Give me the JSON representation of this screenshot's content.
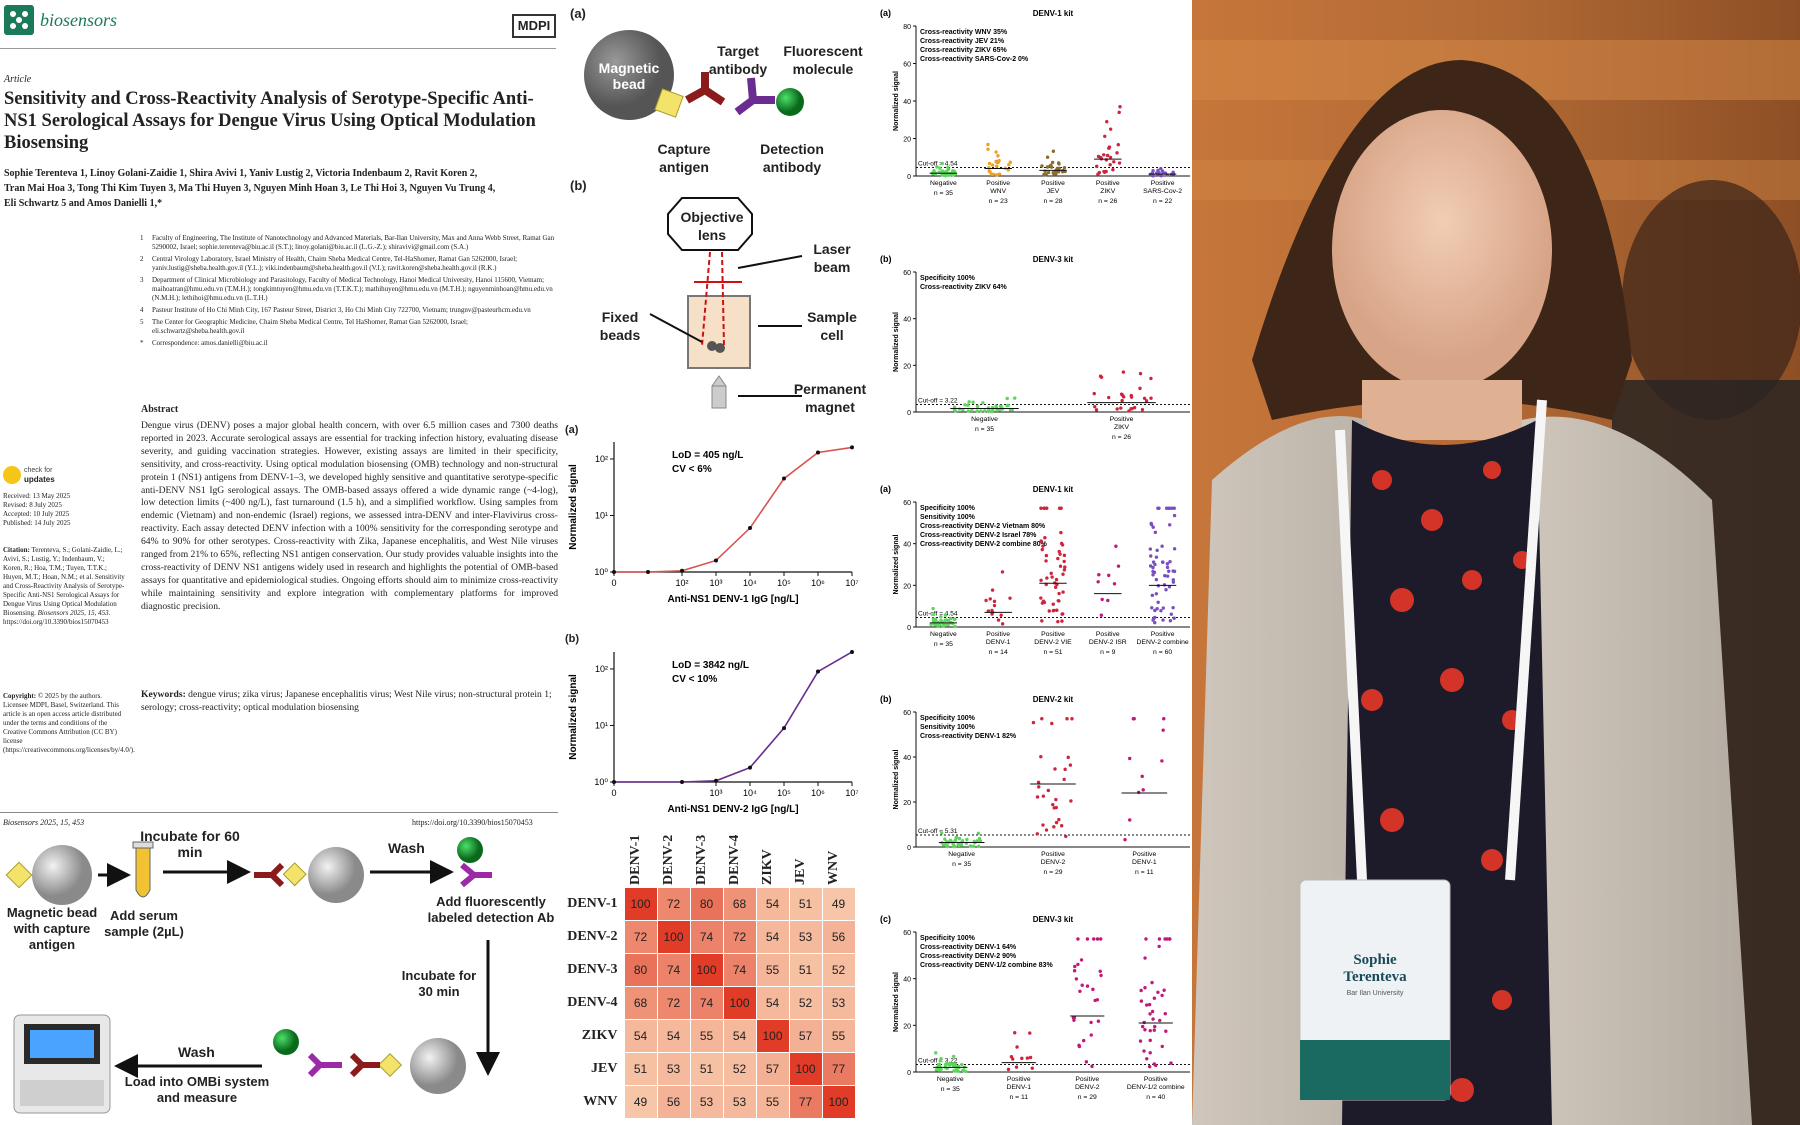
{
  "journal": {
    "name": "biosensors",
    "publisher": "MDPI"
  },
  "article": {
    "type": "Article",
    "title": "Sensitivity and Cross-Reactivity Analysis of Serotype-Specific Anti-NS1 Serological Assays for Dengue Virus Using Optical Modulation Biosensing",
    "authors_line1": "Sophie Terenteva 1, Linoy Golani-Zaidie 1, Shira Avivi 1, Yaniv Lustig 2, Victoria Indenbaum 2, Ravit Koren 2,",
    "authors_line2": "Tran Mai Hoa 3, Tong Thi Kim Tuyen 3, Ma Thi Huyen 3, Nguyen Minh Hoan 3, Le Thi Hoi 3, Nguyen Vu Trung 4,",
    "authors_line3": "Eli Schwartz 5 and Amos Danielli 1,*",
    "affiliations": [
      {
        "n": "1",
        "text": "Faculty of Engineering, The Institute of Nanotechnology and Advanced Materials, Bar-Ilan University, Max and Anna Webb Street, Ramat Gan 5290002, Israel; sophie.terenteva@biu.ac.il (S.T.); linoy.golani@biu.ac.il (L.G.-Z.); shiravivi@gmail.com (S.A.)"
      },
      {
        "n": "2",
        "text": "Central Virology Laboratory, Israel Ministry of Health, Chaim Sheba Medical Centre, Tel-HaShomer, Ramat Gan 5262000, Israel; yaniv.lustig@sheba.health.gov.il (Y.L.); viki.indenbaum@sheba.health.gov.il (V.I.); ravit.koren@sheba.health.gov.il (R.K.)"
      },
      {
        "n": "3",
        "text": "Department of Clinical Microbiology and Parasitology, Faculty of Medical Technology, Hanoi Medical University, Hanoi 115600, Vietnam; maihoatran@hmu.edu.vn (T.M.H.); tongkimtuyen@hmu.edu.vn (T.T.K.T.); mathihuyen@hmu.edu.vn (M.T.H.); nguyenminhoan@hmu.edu.vn (N.M.H.); lethihoi@hmu.edu.vn (L.T.H.)"
      },
      {
        "n": "4",
        "text": "Pasteur Institute of Ho Chi Minh City, 167 Pasteur Street, District 3, Ho Chi Minh City 722700, Vietnam; trungnv@pasteurhcm.edu.vn"
      },
      {
        "n": "5",
        "text": "The Center for Geographic Medicine, Chaim Sheba Medical Centre, Tel HaShomer, Ramat Gan 5262000, Israel; eli.schwartz@sheba.health.gov.il"
      },
      {
        "n": "*",
        "text": "Correspondence: amos.danielli@biu.ac.il"
      }
    ],
    "abstract_heading": "Abstract",
    "abstract": "Dengue virus (DENV) poses a major global health concern, with over 6.5 million cases and 7300 deaths reported in 2023. Accurate serological assays are essential for tracking infection history, evaluating disease severity, and guiding vaccination strategies. However, existing assays are limited in their specificity, sensitivity, and cross-reactivity. Using optical modulation biosensing (OMB) technology and non-structural protein 1 (NS1) antigens from DENV-1–3, we developed highly sensitive and quantitative serotype-specific anti-DENV NS1 IgG serological assays. The OMB-based assays offered a wide dynamic range (~4-log), low detection limits (~400 ng/L), fast turnaround (1.5 h), and a simplified workflow. Using samples from endemic (Vietnam) and non-endemic (Israel) regions, we assessed intra-DENV and inter-Flavivirus cross-reactivity. Each assay detected DENV infection with a 100% sensitivity for the corresponding serotype and 64% to 90% for other serotypes. Cross-reactivity with Zika, Japanese encephalitis, and West Nile viruses ranged from 21% to 65%, reflecting NS1 antigen conservation. Our study provides valuable insights into the cross-reactivity of DENV NS1 antigens widely used in research and highlights the potential of OMB-based assays for quantitative and epidemiological studies. Ongoing efforts should aim to minimize cross-reactivity while maintaining sensitivity and explore integration with complementary platforms for improved diagnostic precision.",
    "keywords_label": "Keywords:",
    "keywords": "dengue virus; zika virus; Japanese encephalitis virus; West Nile virus; non-structural protein 1; serology; cross-reactivity; optical modulation biosensing",
    "check_updates_1": "check for",
    "check_updates_2": "updates",
    "dates": [
      "Received: 13 May 2025",
      "Revised: 8 July 2025",
      "Accepted: 10 July 2025",
      "Published: 14 July 2025"
    ],
    "citation_label": "Citation:",
    "citation": "Terenteva, S.; Golani-Zaidie, L.; Avivi, S.; Lustig, Y.; Indenbaum, V.; Koren, R.; Hoa, T.M.; Tuyen, T.T.K.; Huyen, M.T.; Hoan, N.M.; et al. Sensitivity and Cross-Reactivity Analysis of Serotype-Specific Anti-NS1 Serological Assays for Dengue Virus Using Optical Modulation Biosensing.",
    "citation_journal": "Biosensors 2025, 15, 453.",
    "citation_doi": "https://doi.org/10.3390/bios15070453",
    "copyright_label": "Copyright:",
    "copyright": "© 2025 by the authors. Licensee MDPI, Basel, Switzerland. This article is an open access article distributed under the terms and conditions of the Creative Commons Attribution (CC BY) license (https://creativecommons.org/licenses/by/4.0/).",
    "footer_left": "Biosensors 2025, 15, 453",
    "footer_right": "https://doi.org/10.3390/bios15070453"
  },
  "workflow": {
    "incubate60": "Incubate for 60 min",
    "wash1": "Wash",
    "add_serum": "Add serum sample (2µL)",
    "bead_label": "Magnetic bead with capture antigen",
    "add_detection": "Add fluorescently labeled detection Ab",
    "incubate30": "Incubate for 30 min",
    "wash2": "Wash",
    "load": "Load into OMBi system and measure"
  },
  "schematic": {
    "panel_a": "(a)",
    "panel_b": "(b)",
    "magnetic_bead": "Magnetic bead",
    "target_antibody": "Target antibody",
    "fluorescent_molecule": "Fluorescent molecule",
    "capture_antigen": "Capture antigen",
    "detection_antibody": "Detection antibody",
    "objective_lens": "Objective lens",
    "laser_beam": "Laser beam",
    "fixed_beads": "Fixed beads",
    "sample_cell": "Sample cell",
    "permanent_magnet": "Permanent magnet"
  },
  "colors": {
    "denv1_curve": "#d9534f",
    "denv2_curve": "#6a2c91",
    "heat_high": "#e03c28",
    "heat_low": "#f7c5a8",
    "green": "#5cd65c",
    "orange": "#f0a020",
    "brown": "#8b6b2e",
    "red": "#d0243c",
    "purple": "#7a4fc0",
    "magenta": "#c2187a",
    "accent": "#1a7a5a"
  },
  "chart_data": [
    {
      "type": "line",
      "panel": "(a)",
      "annotation_1": "LoD = 405 ng/L",
      "annotation_2": "CV < 6%",
      "xlabel": "Anti-NS1 DENV-1 IgG [ng/L]",
      "ylabel": "Normalized signal",
      "xticks": [
        "0",
        "10^2",
        "10^3",
        "10^4",
        "10^5",
        "10^6",
        "10^7"
      ],
      "yticks": [
        "10^0",
        "10^1",
        "10^2"
      ],
      "x": [
        0,
        10,
        100,
        1000,
        10000,
        100000,
        1000000,
        10000000
      ],
      "y": [
        1,
        1,
        1.05,
        1.6,
        6,
        45,
        130,
        160
      ],
      "yscale": "log"
    },
    {
      "type": "line",
      "panel": "(b)",
      "annotation_1": "LoD = 3842 ng/L",
      "annotation_2": "CV < 10%",
      "xlabel": "Anti-NS1 DENV-2 IgG [ng/L]",
      "ylabel": "Normalized signal",
      "xticks": [
        "0",
        "10^3",
        "10^4",
        "10^5",
        "10^6",
        "10^7"
      ],
      "yticks": [
        "10^0",
        "10^1",
        "10^2"
      ],
      "x": [
        0,
        100,
        1000,
        10000,
        100000,
        1000000,
        10000000
      ],
      "y": [
        1,
        1,
        1.05,
        1.8,
        9,
        90,
        200
      ],
      "yscale": "log"
    },
    {
      "type": "heatmap",
      "labels": [
        "DENV-1",
        "DENV-2",
        "DENV-3",
        "DENV-4",
        "ZIKV",
        "JEV",
        "WNV"
      ],
      "values": [
        [
          100,
          72,
          80,
          68,
          54,
          51,
          49
        ],
        [
          72,
          100,
          74,
          72,
          54,
          53,
          56
        ],
        [
          80,
          74,
          100,
          74,
          55,
          51,
          52
        ],
        [
          68,
          72,
          74,
          100,
          54,
          52,
          53
        ],
        [
          54,
          54,
          55,
          54,
          100,
          57,
          55
        ],
        [
          51,
          53,
          51,
          52,
          57,
          100,
          77
        ],
        [
          49,
          56,
          53,
          53,
          55,
          77,
          100
        ]
      ]
    },
    {
      "type": "scatter",
      "panel": "(a)",
      "title": "DENV-1 kit",
      "notes": [
        "Cross-reactivity WNV 35%",
        "Cross-reactivity JEV 21%",
        "Cross-reactivity ZIKV 65%",
        "Cross-reactivity SARS-Cov-2 0%"
      ],
      "cutoff": "Cut-off = 4.54",
      "cutoff_value": 4.54,
      "ylim": [
        0,
        80
      ],
      "yticks": [
        "0",
        "20",
        "40",
        "60",
        "80"
      ],
      "ylabel": "Normalized signal",
      "groups": [
        {
          "name": "Negative",
          "n": "n = 35",
          "median": 1.5
        },
        {
          "name": "Positive WNV",
          "n": "n = 23",
          "median": 4
        },
        {
          "name": "Positive JEV",
          "n": "n = 28",
          "median": 3
        },
        {
          "name": "Positive ZIKV",
          "n": "n = 26",
          "median": 9
        },
        {
          "name": "Positive SARS-Cov-2",
          "n": "n = 22",
          "median": 1
        }
      ]
    },
    {
      "type": "scatter",
      "panel": "(b)",
      "title": "DENV-3 kit",
      "notes": [
        "Specificity 100%",
        "Cross-reactivity ZIKV 64%"
      ],
      "cutoff": "Cut-off = 3.22",
      "cutoff_value": 3.22,
      "ylim": [
        0,
        60
      ],
      "yticks": [
        "0",
        "20",
        "40",
        "60"
      ],
      "ylabel": "Normalized signal",
      "groups": [
        {
          "name": "Negative",
          "n": "n = 35",
          "median": 1.5
        },
        {
          "name": "Positive ZIKV",
          "n": "n = 26",
          "median": 4
        }
      ]
    },
    {
      "type": "scatter",
      "panel": "(a)",
      "title": "DENV-1 kit",
      "notes": [
        "Specificity 100%",
        "Sensitivity 100%",
        "Cross-reactivity DENV-2 Vietnam 80%",
        "Cross-reactivity DENV-2 Israel 78%",
        "Cross-reactivity DENV-2 combine 80%"
      ],
      "cutoff": "Cut-off = 4.54",
      "cutoff_value": 4.54,
      "ylim": [
        0,
        60
      ],
      "yticks": [
        "0",
        "20",
        "40",
        "60"
      ],
      "ylabel": "Normalized signal",
      "groups": [
        {
          "name": "Negative",
          "n": "n = 35",
          "median": 2
        },
        {
          "name": "Positive DENV-1",
          "n": "n = 14",
          "median": 7
        },
        {
          "name": "Positive DENV-2 VIE",
          "n": "n = 51",
          "median": 21
        },
        {
          "name": "Positive DENV-2 ISR",
          "n": "n = 9",
          "median": 16
        },
        {
          "name": "Positive DENV-2 combine",
          "n": "n = 60",
          "median": 20
        }
      ]
    },
    {
      "type": "scatter",
      "panel": "(b)",
      "title": "DENV-2 kit",
      "notes": [
        "Specificity 100%",
        "Sensitivity 100%",
        "Cross-reactivity DENV-1 82%"
      ],
      "cutoff": "Cut-off = 5.31",
      "cutoff_value": 5.31,
      "ylim": [
        0,
        60
      ],
      "yticks": [
        "0",
        "20",
        "40",
        "60"
      ],
      "ylabel": "Normalized signal",
      "groups": [
        {
          "name": "Negative",
          "n": "n = 35",
          "median": 2
        },
        {
          "name": "Positive DENV-2",
          "n": "n = 29",
          "median": 28
        },
        {
          "name": "Positive DENV-1",
          "n": "n = 11",
          "median": 24
        }
      ]
    },
    {
      "type": "scatter",
      "panel": "(c)",
      "title": "DENV-3 kit",
      "notes": [
        "Specificity 100%",
        "Cross-reactivity DENV-1 64%",
        "Cross-reactivity DENV-2 90%",
        "Cross-reactivity DENV-1/2 combine 83%"
      ],
      "cutoff": "Cut-off = 3.22",
      "cutoff_value": 3.22,
      "ylim": [
        0,
        60
      ],
      "yticks": [
        "0",
        "20",
        "40",
        "60"
      ],
      "ylabel": "Normalized signal",
      "groups": [
        {
          "name": "Negative",
          "n": "n = 35",
          "median": 2
        },
        {
          "name": "Positive DENV-1",
          "n": "n = 11",
          "median": 4
        },
        {
          "name": "Positive DENV-2",
          "n": "n = 29",
          "median": 24
        },
        {
          "name": "Positive DENV-1/2 combine",
          "n": "n = 40",
          "median": 21
        }
      ]
    }
  ],
  "badge": {
    "name_line1": "Sophie",
    "name_line2": "Terenteva",
    "affiliation": "Bar Ilan University"
  }
}
